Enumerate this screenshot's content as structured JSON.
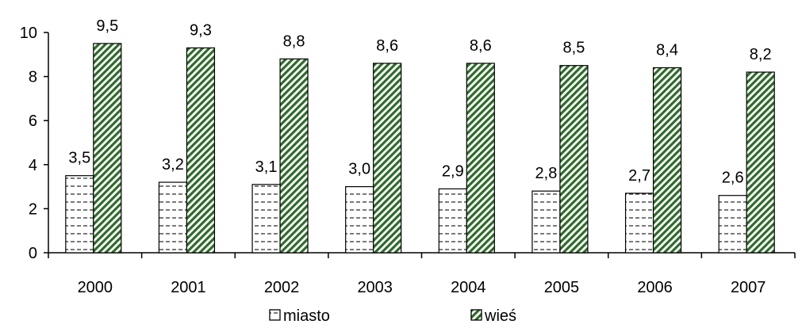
{
  "chart_data": {
    "type": "bar",
    "categories": [
      "2000",
      "2001",
      "2002",
      "2003",
      "2004",
      "2005",
      "2006",
      "2007"
    ],
    "series": [
      {
        "name": "miasto",
        "values": [
          3.5,
          3.2,
          3.1,
          3.0,
          2.9,
          2.8,
          2.7,
          2.6
        ],
        "labels": [
          "3,5",
          "3,2",
          "3,1",
          "3,0",
          "2,9",
          "2,8",
          "2,7",
          "2,6"
        ],
        "fill": "#ffffff",
        "pattern": "dashes"
      },
      {
        "name": "wieś",
        "values": [
          9.5,
          9.3,
          8.8,
          8.6,
          8.6,
          8.5,
          8.4,
          8.2
        ],
        "labels": [
          "9,5",
          "9,3",
          "8,8",
          "8,6",
          "8,6",
          "8,5",
          "8,4",
          "8,2"
        ],
        "fill": "#2f6b2a",
        "pattern": "diagonal-stripes"
      }
    ],
    "ylim": [
      0,
      10
    ],
    "yticks": [
      "0",
      "2",
      "4",
      "6",
      "8",
      "10"
    ],
    "grid": false,
    "legend": "bottom",
    "title": "",
    "xlabel": "",
    "ylabel": ""
  }
}
